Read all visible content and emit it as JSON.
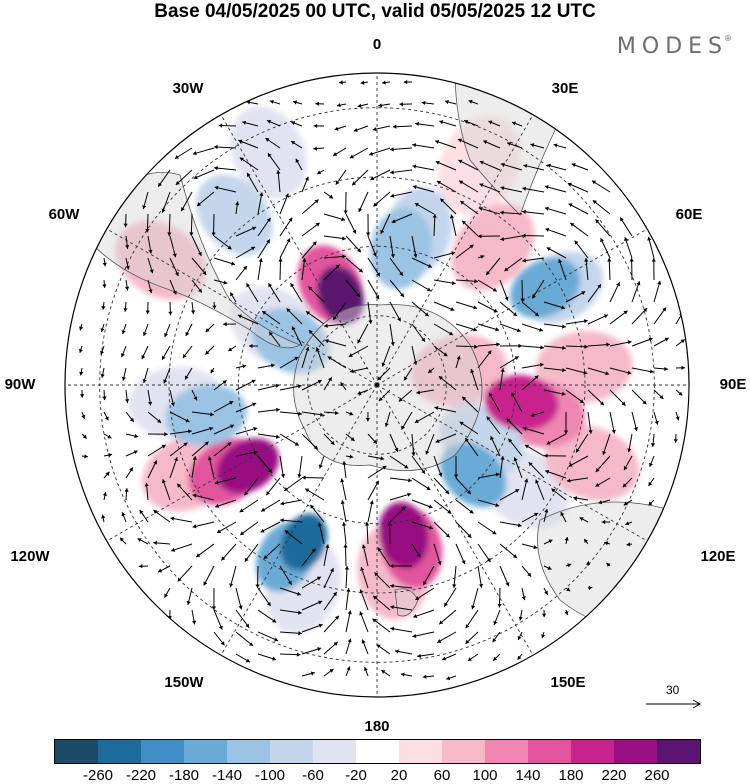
{
  "title": "Base 04/05/2025 00 UTC, valid 05/05/2025 12 UTC",
  "logo": "MODES",
  "logo_mark": "®",
  "longitude_labels": {
    "top": "0",
    "top_left": "30W",
    "top_right": "30E",
    "upper_left": "60W",
    "upper_right": "60E",
    "left": "90W",
    "right": "90E",
    "lower_left": "120W",
    "lower_right": "120E",
    "bottom_left": "150W",
    "bottom_right": "150E",
    "bottom": "180"
  },
  "reference_vector": "30",
  "colorbar": {
    "colors": [
      "#1c4a69",
      "#1d6a9b",
      "#3f8fc6",
      "#6aaad6",
      "#9bc3e4",
      "#c4d6ec",
      "#e2e3f1",
      "#ffffff",
      "#fbdfe3",
      "#f6b9c9",
      "#ee86b1",
      "#e2559e",
      "#c7238e",
      "#990f82",
      "#5b1470"
    ],
    "ticks": [
      "-260",
      "-220",
      "-180",
      "-140",
      "-100",
      "-60",
      "-20",
      "20",
      "60",
      "100",
      "140",
      "180",
      "220",
      "260"
    ]
  },
  "anomaly_cells": [
    {
      "lon": 320,
      "colat": 32,
      "value": -100
    },
    {
      "lon": 335,
      "colat": 37,
      "value": -60
    },
    {
      "lon": 10,
      "colat": 20,
      "value": -140
    },
    {
      "lon": 15,
      "colat": 23,
      "value": -100
    },
    {
      "lon": 40,
      "colat": 26,
      "value": 60
    },
    {
      "lon": 25,
      "colat": 35,
      "value": 20
    },
    {
      "lon": 60,
      "colat": 28,
      "value": -180
    },
    {
      "lon": 62,
      "colat": 30,
      "value": -100
    },
    {
      "lon": 97,
      "colat": 21,
      "value": 180
    },
    {
      "lon": 100,
      "colat": 24,
      "value": 100
    },
    {
      "lon": 85,
      "colat": 30,
      "value": 60
    },
    {
      "lon": 118,
      "colat": 17,
      "value": -100
    },
    {
      "lon": 133,
      "colat": 19,
      "value": -180
    },
    {
      "lon": 125,
      "colat": 26,
      "value": -60
    },
    {
      "lon": 170,
      "colat": 22,
      "value": 220
    },
    {
      "lon": 168,
      "colat": 24,
      "value": 140
    },
    {
      "lon": 175,
      "colat": 27,
      "value": 60
    },
    {
      "lon": 205,
      "colat": 25,
      "value": -260
    },
    {
      "lon": 208,
      "colat": 28,
      "value": -180
    },
    {
      "lon": 200,
      "colat": 31,
      "value": -60
    },
    {
      "lon": 238,
      "colat": 22,
      "value": 220
    },
    {
      "lon": 240,
      "colat": 25,
      "value": 140
    },
    {
      "lon": 245,
      "colat": 30,
      "value": 60
    },
    {
      "lon": 260,
      "colat": 25,
      "value": -140
    },
    {
      "lon": 265,
      "colat": 29,
      "value": -60
    },
    {
      "lon": 297,
      "colat": 14,
      "value": -140
    },
    {
      "lon": 300,
      "colat": 17,
      "value": -60
    },
    {
      "lon": 338,
      "colat": 14,
      "value": 260
    },
    {
      "lon": 335,
      "colat": 16,
      "value": 140
    },
    {
      "lon": 300,
      "colat": 36,
      "value": 60
    },
    {
      "lon": 110,
      "colat": 33,
      "value": 60
    },
    {
      "lon": 80,
      "colat": 12,
      "value": 60
    }
  ],
  "land_regions": [
    {
      "name": "antarctica"
    },
    {
      "name": "south-america"
    },
    {
      "name": "africa"
    },
    {
      "name": "australia"
    },
    {
      "name": "new-zealand"
    }
  ]
}
